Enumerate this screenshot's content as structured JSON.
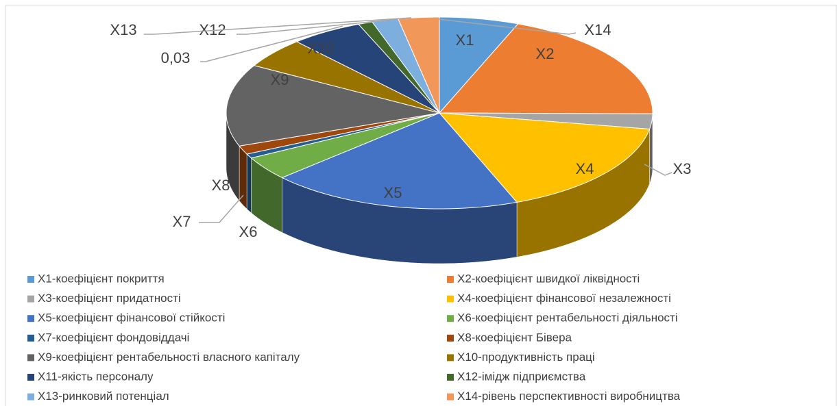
{
  "chart_data": {
    "type": "pie3d",
    "categories": [
      "X1-коефіцієнт покриття",
      "X2-коефіцієнт швидкої ліквідності",
      "X3-коефіцієнт придатності",
      "X4-коефіцієнт фінансової незалежності",
      "X5-коефіцієнт фінансової стійкості",
      "X6-коефіцієнт рентабельності діяльності",
      "X7-коефіцієнт фондовіддачі",
      "X8-коефіцієнт Бівера",
      "X9-коефіцієнт рентабельності власного капіталу",
      "X10-продуктивність праці",
      "X11-якість персоналу",
      "X12-імідж підприємства",
      "X13-ринковий потенціал",
      "X14-рівень перспективності виробництва"
    ],
    "values": [
      0.033,
      0.105,
      0.014,
      0.09,
      0.105,
      0.022,
      0.004,
      0.008,
      0.076,
      0.028,
      0.03,
      0.006,
      0.011,
      0.017
    ],
    "labels": [
      "X1",
      "X2",
      "X3",
      "X4",
      "X5",
      "X6",
      "X7",
      "X8",
      "X9",
      "X10",
      "0,03",
      "X12",
      "X13",
      "X14"
    ],
    "colors": [
      "#5b9bd5",
      "#ed7d31",
      "#a5a5a5",
      "#ffc000",
      "#4472c4",
      "#70ad47",
      "#255e91",
      "#9e480e",
      "#636363",
      "#997300",
      "#264478",
      "#43682b",
      "#7cafdd",
      "#f1975a"
    ],
    "legend": "bottom"
  }
}
